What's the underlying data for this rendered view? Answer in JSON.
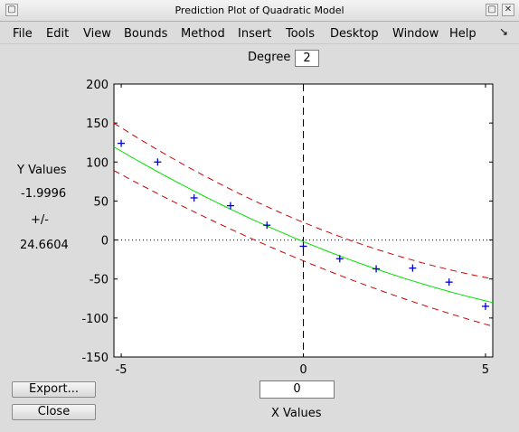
{
  "window": {
    "title": "Prediction Plot of Quadratic Model"
  },
  "menu": [
    "File",
    "Edit",
    "View",
    "Bounds",
    "Method",
    "Insert",
    "Tools",
    "Desktop",
    "Window",
    "Help"
  ],
  "degree": {
    "label": "Degree",
    "value": "2"
  },
  "yvalues": {
    "label": "Y Values",
    "value": "-1.9996",
    "pm": "+/-",
    "ci": "24.6604"
  },
  "xinput": {
    "value": "0"
  },
  "xlabel": "X Values",
  "buttons": {
    "export": "Export...",
    "close": "Close"
  },
  "colors": {
    "fit": "#00e000",
    "bounds": "#cc0000",
    "points": "#0000cc"
  },
  "chart_data": {
    "type": "scatter",
    "xlim": [
      -5.2,
      5.2
    ],
    "ylim": [
      -150,
      200
    ],
    "x_ticks": [
      -5,
      0,
      5
    ],
    "y_ticks": [
      200,
      150,
      100,
      50,
      0,
      -50,
      -100,
      -150
    ],
    "points": {
      "x": [
        -5,
        -4,
        -3,
        -2,
        -1,
        0,
        1,
        2,
        3,
        4,
        5
      ],
      "y": [
        124,
        100,
        54,
        44,
        19,
        -8,
        -24,
        -37,
        -36,
        -54,
        -85
      ]
    },
    "fit": {
      "coeffs": [
        -1.9996,
        -19.2,
        0.8
      ]
    },
    "bound_halfwidth": {
      "center": 24.66,
      "edge": 30
    },
    "vertical_line_x": 0,
    "horizontal_line_y": 0
  }
}
